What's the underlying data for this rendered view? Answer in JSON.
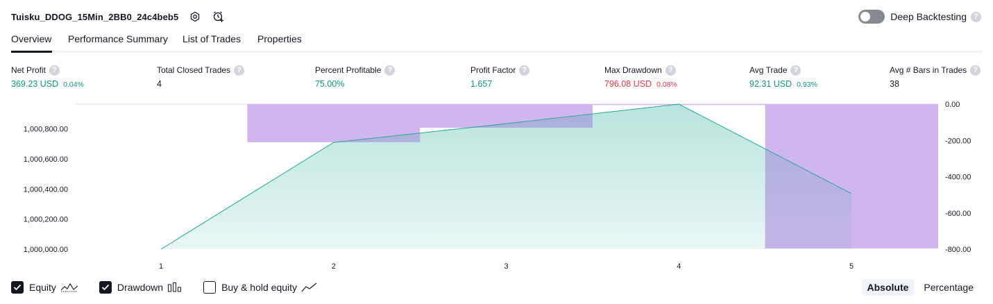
{
  "header": {
    "strategy_title": "Tuisku_DDOG_15Min_2BB0_24c4beb5",
    "deep_backtesting_label": "Deep Backtesting",
    "help_glyph": "?"
  },
  "tabs": [
    {
      "label": "Overview",
      "active": true
    },
    {
      "label": "Performance Summary",
      "active": false
    },
    {
      "label": "List of Trades",
      "active": false
    },
    {
      "label": "Properties",
      "active": false
    }
  ],
  "metrics": [
    {
      "label": "Net Profit",
      "value": "369.23 USD",
      "pct": "0.04%",
      "tone": "green"
    },
    {
      "label": "Total Closed Trades",
      "value": "4",
      "pct": "",
      "tone": "plain"
    },
    {
      "label": "Percent Profitable",
      "value": "75.00%",
      "pct": "",
      "tone": "green"
    },
    {
      "label": "Profit Factor",
      "value": "1.657",
      "pct": "",
      "tone": "green"
    },
    {
      "label": "Max Drawdown",
      "value": "796.08 USD",
      "pct": "0.08%",
      "tone": "red"
    },
    {
      "label": "Avg Trade",
      "value": "92.31 USD",
      "pct": "0.93%",
      "tone": "green"
    },
    {
      "label": "Avg # Bars in Trades",
      "value": "38",
      "pct": "",
      "tone": "plain"
    }
  ],
  "chart_data": {
    "type": "area",
    "x": [
      1,
      2,
      3,
      4,
      5
    ],
    "series": [
      {
        "name": "Equity",
        "axis": "left",
        "values": [
          1000000.0,
          1000710.0,
          1000835.0,
          1000965.0,
          1000370.0
        ],
        "color": "#22ab94"
      },
      {
        "name": "Drawdown",
        "axis": "right",
        "values": [
          0.0,
          -210.0,
          -130.0,
          -5.0,
          -796.08
        ],
        "color": "#c99cf7"
      }
    ],
    "left_ticks": [
      "1,000,000.00",
      "1,000,200.00",
      "1,000,400.00",
      "1,000,600.00",
      "1,000,800.00"
    ],
    "right_ticks": [
      "0.00",
      "-200.00",
      "-400.00",
      "-600.00",
      "-800.00"
    ],
    "x_ticks": [
      "1",
      "2",
      "3",
      "4",
      "5"
    ],
    "left_ylim": [
      1000000,
      1000965
    ],
    "right_ylim": [
      -800,
      0
    ]
  },
  "legend": {
    "items": [
      {
        "label": "Equity",
        "checked": true,
        "icon": "equity-line-icon"
      },
      {
        "label": "Drawdown",
        "checked": true,
        "icon": "drawdown-bars-icon"
      },
      {
        "label": "Buy & hold equity",
        "checked": false,
        "icon": "buy-hold-line-icon"
      }
    ]
  },
  "mode": {
    "absolute_label": "Absolute",
    "percentage_label": "Percentage",
    "active": "Absolute"
  }
}
